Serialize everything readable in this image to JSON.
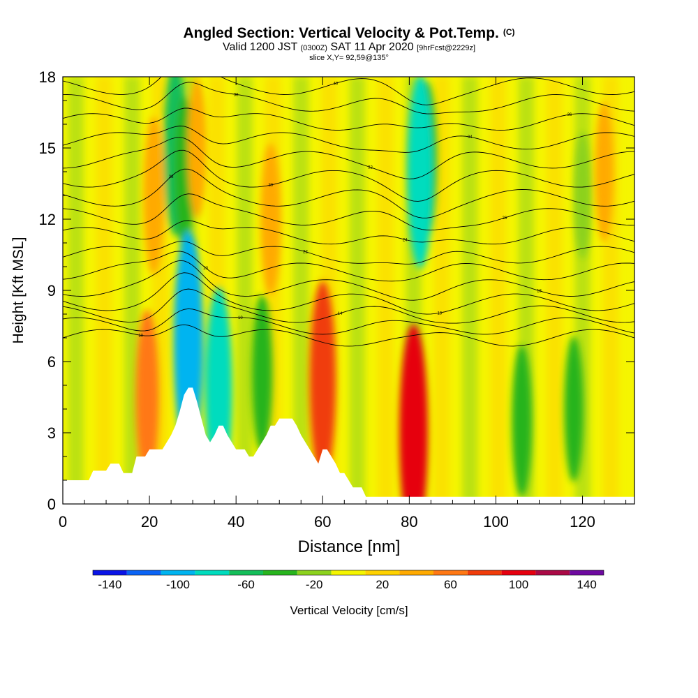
{
  "header": {
    "title": "Angled Section: Vertical Velocity & Pot.Temp.",
    "title_mark": "(C)",
    "valid_prefix": "Valid 1200 JST",
    "valid_utc": "(0300Z)",
    "valid_date": "SAT 11 Apr 2020",
    "forecast": "[9hrFcst@2229z]",
    "slice": "slice X,Y= 92,59@135°"
  },
  "chart_data": {
    "type": "heatmap",
    "xlabel": "Distance [nm]",
    "ylabel": "Height [Kft MSL]",
    "xlim": [
      0,
      132
    ],
    "ylim": [
      0,
      18
    ],
    "x_ticks": [
      0,
      20,
      40,
      60,
      80,
      100,
      120
    ],
    "y_ticks": [
      0,
      3,
      6,
      9,
      12,
      15,
      18
    ],
    "colorbar": {
      "label": "Vertical Velocity [cm/s]",
      "tick_labels": [
        "-140",
        "-100",
        "-60",
        "-20",
        "20",
        "60",
        "100",
        "140"
      ],
      "boundaries": [
        -150,
        -130,
        -110,
        -90,
        -70,
        -50,
        -30,
        -10,
        10,
        30,
        50,
        70,
        90,
        110,
        130,
        150
      ],
      "colors": [
        "#0a14e6",
        "#0a64f5",
        "#00b4f0",
        "#00dcbe",
        "#14be5a",
        "#28b41e",
        "#8cd21e",
        "#f5f500",
        "#ffd200",
        "#ffaa00",
        "#ff7814",
        "#f03c0a",
        "#e6000f",
        "#aa0a46",
        "#6e0aa0"
      ]
    },
    "terrain_kft": [
      [
        0,
        1.0
      ],
      [
        6,
        1.0
      ],
      [
        7,
        1.4
      ],
      [
        10,
        1.4
      ],
      [
        11,
        1.7
      ],
      [
        13,
        1.7
      ],
      [
        14,
        1.3
      ],
      [
        16,
        1.3
      ],
      [
        17,
        2.0
      ],
      [
        19,
        2.0
      ],
      [
        20,
        2.3
      ],
      [
        23,
        2.3
      ],
      [
        24,
        2.6
      ],
      [
        25,
        2.9
      ],
      [
        26,
        3.3
      ],
      [
        27,
        3.9
      ],
      [
        28,
        4.6
      ],
      [
        29,
        4.9
      ],
      [
        30,
        4.9
      ],
      [
        31,
        4.3
      ],
      [
        32,
        3.6
      ],
      [
        33,
        2.9
      ],
      [
        34,
        2.6
      ],
      [
        35,
        2.9
      ],
      [
        36,
        3.3
      ],
      [
        37,
        3.3
      ],
      [
        38,
        2.9
      ],
      [
        39,
        2.6
      ],
      [
        40,
        2.3
      ],
      [
        42,
        2.3
      ],
      [
        43,
        2.0
      ],
      [
        44,
        2.0
      ],
      [
        45,
        2.3
      ],
      [
        46,
        2.6
      ],
      [
        47,
        2.9
      ],
      [
        48,
        3.3
      ],
      [
        49,
        3.3
      ],
      [
        50,
        3.6
      ],
      [
        53,
        3.6
      ],
      [
        54,
        3.3
      ],
      [
        55,
        2.9
      ],
      [
        56,
        2.6
      ],
      [
        57,
        2.3
      ],
      [
        58,
        2.0
      ],
      [
        59,
        1.7
      ],
      [
        60,
        2.3
      ],
      [
        61,
        2.3
      ],
      [
        62,
        2.0
      ],
      [
        63,
        1.7
      ],
      [
        64,
        1.3
      ],
      [
        65,
        1.3
      ],
      [
        66,
        1.0
      ],
      [
        67,
        0.7
      ],
      [
        69,
        0.7
      ],
      [
        70,
        0.3
      ],
      [
        132,
        0.3
      ]
    ],
    "features": [
      {
        "x": 21,
        "y": 13,
        "value": 45
      },
      {
        "x": 19.5,
        "y": 4.5,
        "value": 60
      },
      {
        "x": 26,
        "y": 15,
        "value": -60
      },
      {
        "x": 28,
        "y": 14,
        "value": -40
      },
      {
        "x": 31,
        "y": 15,
        "value": 30
      },
      {
        "x": 29,
        "y": 6.8,
        "value": -110
      },
      {
        "x": 36,
        "y": 4.8,
        "value": -85
      },
      {
        "x": 46,
        "y": 5.5,
        "value": -45
      },
      {
        "x": 60,
        "y": 5.2,
        "value": 80
      },
      {
        "x": 81,
        "y": 3.0,
        "value": 95
      },
      {
        "x": 84,
        "y": 14.5,
        "value": -45
      },
      {
        "x": 82.5,
        "y": 14,
        "value": -75
      },
      {
        "x": 106,
        "y": 3.5,
        "value": -40
      },
      {
        "x": 118,
        "y": 4,
        "value": -35
      },
      {
        "x": 48,
        "y": 12,
        "value": 40
      },
      {
        "x": 120,
        "y": 13,
        "value": -20
      },
      {
        "x": 125,
        "y": 14,
        "value": 30
      }
    ],
    "isentropes_c": [
      {
        "label": "10",
        "base": 7.0
      },
      {
        "label": "10",
        "base": 7.5
      },
      {
        "label": "14",
        "base": 8.0
      },
      {
        "label": "16",
        "base": 8.5
      },
      {
        "label": "18",
        "base": 9.1
      },
      {
        "label": "20",
        "base": 9.8
      },
      {
        "label": "22",
        "base": 10.5
      },
      {
        "label": "24",
        "base": 11.3
      },
      {
        "label": "26",
        "base": 12.1
      },
      {
        "label": "28",
        "base": 12.9
      },
      {
        "label": "30",
        "base": 13.7
      },
      {
        "label": "32",
        "base": 14.5
      },
      {
        "label": "34",
        "base": 15.3
      },
      {
        "label": "36",
        "base": 16.1
      },
      {
        "label": "38",
        "base": 16.9
      },
      {
        "label": "40",
        "base": 17.6
      }
    ]
  }
}
